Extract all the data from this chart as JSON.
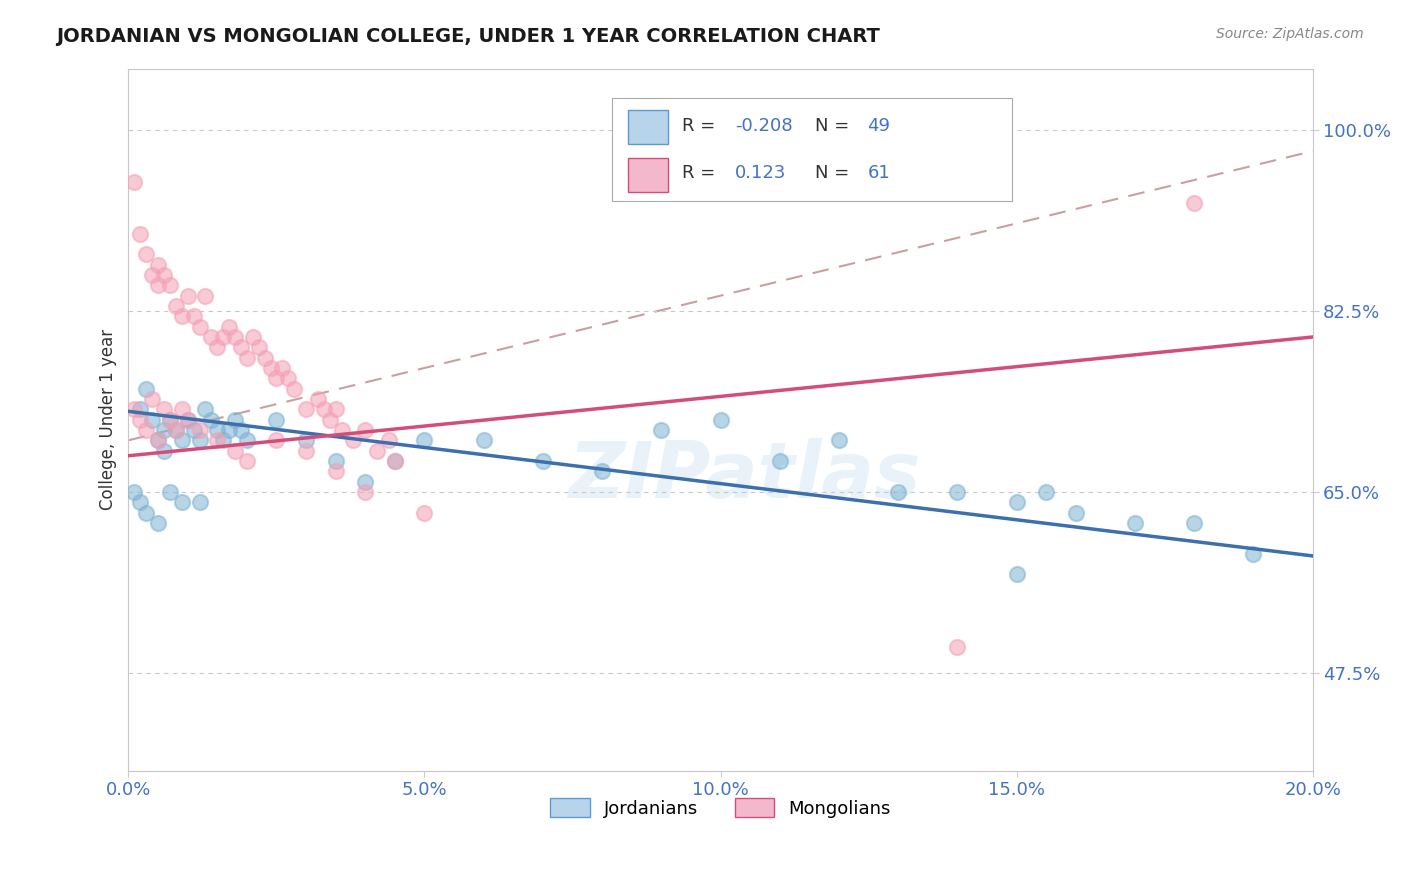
{
  "title": "JORDANIAN VS MONGOLIAN COLLEGE, UNDER 1 YEAR CORRELATION CHART",
  "source_text": "Source: ZipAtlas.com",
  "ylabel": "College, Under 1 year",
  "xlim": [
    0.0,
    0.2
  ],
  "ylim": [
    0.38,
    1.06
  ],
  "yticks": [
    0.475,
    0.65,
    0.825,
    1.0
  ],
  "ytick_labels": [
    "47.5%",
    "65.0%",
    "82.5%",
    "100.0%"
  ],
  "xticks": [
    0.0,
    0.05,
    0.1,
    0.15,
    0.2
  ],
  "xtick_labels": [
    "0.0%",
    "5.0%",
    "10.0%",
    "15.0%",
    "20.0%"
  ],
  "jordanians_R": -0.208,
  "jordanians_N": 49,
  "mongolians_R": 0.123,
  "mongolians_N": 61,
  "jordanian_color": "#7fb3d3",
  "mongolian_color": "#f4a0b5",
  "trend_line_blue": "#3d6fad",
  "trend_line_pink": "#d44d7a",
  "trend_line_dashed": "#c8a0a0",
  "background_color": "#ffffff",
  "watermark": "ZIPatlas",
  "jordanians_x": [
    0.002,
    0.003,
    0.004,
    0.005,
    0.006,
    0.006,
    0.007,
    0.008,
    0.009,
    0.01,
    0.011,
    0.012,
    0.013,
    0.014,
    0.015,
    0.016,
    0.017,
    0.018,
    0.019,
    0.02,
    0.025,
    0.03,
    0.035,
    0.04,
    0.045,
    0.05,
    0.06,
    0.07,
    0.08,
    0.09,
    0.1,
    0.11,
    0.12,
    0.13,
    0.14,
    0.15,
    0.155,
    0.16,
    0.17,
    0.18,
    0.001,
    0.002,
    0.003,
    0.005,
    0.007,
    0.009,
    0.012,
    0.15,
    0.19
  ],
  "jordanians_y": [
    0.73,
    0.75,
    0.72,
    0.7,
    0.71,
    0.69,
    0.72,
    0.71,
    0.7,
    0.72,
    0.71,
    0.7,
    0.73,
    0.72,
    0.71,
    0.7,
    0.71,
    0.72,
    0.71,
    0.7,
    0.72,
    0.7,
    0.68,
    0.66,
    0.68,
    0.7,
    0.7,
    0.68,
    0.67,
    0.71,
    0.72,
    0.68,
    0.7,
    0.65,
    0.65,
    0.64,
    0.65,
    0.63,
    0.62,
    0.62,
    0.65,
    0.64,
    0.63,
    0.62,
    0.65,
    0.64,
    0.64,
    0.57,
    0.59
  ],
  "mongolians_x": [
    0.001,
    0.002,
    0.003,
    0.004,
    0.005,
    0.005,
    0.006,
    0.007,
    0.008,
    0.009,
    0.01,
    0.011,
    0.012,
    0.013,
    0.014,
    0.015,
    0.016,
    0.017,
    0.018,
    0.019,
    0.02,
    0.021,
    0.022,
    0.023,
    0.024,
    0.025,
    0.026,
    0.027,
    0.028,
    0.03,
    0.032,
    0.033,
    0.034,
    0.035,
    0.036,
    0.038,
    0.04,
    0.042,
    0.044,
    0.045,
    0.001,
    0.002,
    0.003,
    0.004,
    0.005,
    0.006,
    0.007,
    0.008,
    0.009,
    0.01,
    0.012,
    0.015,
    0.018,
    0.02,
    0.025,
    0.03,
    0.035,
    0.04,
    0.05,
    0.14,
    0.18
  ],
  "mongolians_y": [
    0.95,
    0.9,
    0.88,
    0.86,
    0.87,
    0.85,
    0.86,
    0.85,
    0.83,
    0.82,
    0.84,
    0.82,
    0.81,
    0.84,
    0.8,
    0.79,
    0.8,
    0.81,
    0.8,
    0.79,
    0.78,
    0.8,
    0.79,
    0.78,
    0.77,
    0.76,
    0.77,
    0.76,
    0.75,
    0.73,
    0.74,
    0.73,
    0.72,
    0.73,
    0.71,
    0.7,
    0.71,
    0.69,
    0.7,
    0.68,
    0.73,
    0.72,
    0.71,
    0.74,
    0.7,
    0.73,
    0.72,
    0.71,
    0.73,
    0.72,
    0.71,
    0.7,
    0.69,
    0.68,
    0.7,
    0.69,
    0.67,
    0.65,
    0.63,
    0.5,
    0.93
  ],
  "jord_trend_x0": 0.0,
  "jord_trend_y0": 0.728,
  "jord_trend_x1": 0.2,
  "jord_trend_y1": 0.588,
  "mong_trend_x0": 0.0,
  "mong_trend_y0": 0.685,
  "mong_trend_x1": 0.2,
  "mong_trend_y1": 0.8,
  "dash_trend_x0": 0.0,
  "dash_trend_y0": 0.7,
  "dash_trend_x1": 0.2,
  "dash_trend_y1": 0.98
}
